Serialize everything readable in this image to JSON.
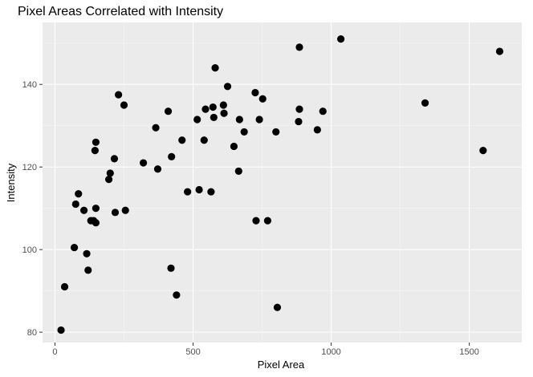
{
  "chart_data": {
    "type": "scatter",
    "title": "Pixel Areas Correlated with Intensity",
    "xlabel": "Pixel Area",
    "ylabel": "Intensity",
    "xlim": [
      -45,
      1690
    ],
    "ylim": [
      77.5,
      155
    ],
    "x_ticks": [
      0,
      500,
      1000,
      1500
    ],
    "x_tick_labels": [
      "0",
      "500",
      "1000",
      "1500"
    ],
    "y_ticks": [
      80,
      100,
      120,
      140
    ],
    "y_tick_labels": [
      "80",
      "100",
      "120",
      "140"
    ],
    "grid": true,
    "background": "#ebebeb",
    "grid_major_color": "#ffffff",
    "point_color": "#000000",
    "points": [
      {
        "x": 22,
        "y": 80.5
      },
      {
        "x": 35,
        "y": 91
      },
      {
        "x": 70,
        "y": 100.5
      },
      {
        "x": 75,
        "y": 111
      },
      {
        "x": 85,
        "y": 113.5
      },
      {
        "x": 105,
        "y": 109.5
      },
      {
        "x": 115,
        "y": 99
      },
      {
        "x": 120,
        "y": 95
      },
      {
        "x": 130,
        "y": 107
      },
      {
        "x": 140,
        "y": 107
      },
      {
        "x": 145,
        "y": 124
      },
      {
        "x": 148,
        "y": 126
      },
      {
        "x": 148,
        "y": 110
      },
      {
        "x": 148,
        "y": 106.5
      },
      {
        "x": 195,
        "y": 117
      },
      {
        "x": 200,
        "y": 118.5
      },
      {
        "x": 215,
        "y": 122
      },
      {
        "x": 218,
        "y": 109
      },
      {
        "x": 230,
        "y": 137.5
      },
      {
        "x": 250,
        "y": 135
      },
      {
        "x": 255,
        "y": 109.5
      },
      {
        "x": 320,
        "y": 121
      },
      {
        "x": 365,
        "y": 129.5
      },
      {
        "x": 372,
        "y": 119.5
      },
      {
        "x": 410,
        "y": 133.5
      },
      {
        "x": 420,
        "y": 95.5
      },
      {
        "x": 422,
        "y": 122.5
      },
      {
        "x": 440,
        "y": 89
      },
      {
        "x": 460,
        "y": 126.5
      },
      {
        "x": 480,
        "y": 114
      },
      {
        "x": 515,
        "y": 131.5
      },
      {
        "x": 522,
        "y": 114.5
      },
      {
        "x": 540,
        "y": 126.5
      },
      {
        "x": 545,
        "y": 134
      },
      {
        "x": 565,
        "y": 114
      },
      {
        "x": 572,
        "y": 134.5
      },
      {
        "x": 575,
        "y": 132
      },
      {
        "x": 580,
        "y": 144
      },
      {
        "x": 610,
        "y": 135
      },
      {
        "x": 612,
        "y": 133
      },
      {
        "x": 625,
        "y": 139.5
      },
      {
        "x": 648,
        "y": 125
      },
      {
        "x": 665,
        "y": 119
      },
      {
        "x": 668,
        "y": 131.5
      },
      {
        "x": 685,
        "y": 128.5
      },
      {
        "x": 725,
        "y": 138
      },
      {
        "x": 728,
        "y": 107
      },
      {
        "x": 740,
        "y": 131.5
      },
      {
        "x": 752,
        "y": 136.5
      },
      {
        "x": 770,
        "y": 107
      },
      {
        "x": 800,
        "y": 128.5
      },
      {
        "x": 805,
        "y": 86
      },
      {
        "x": 882,
        "y": 131
      },
      {
        "x": 885,
        "y": 134
      },
      {
        "x": 885,
        "y": 149
      },
      {
        "x": 950,
        "y": 129
      },
      {
        "x": 970,
        "y": 133.5
      },
      {
        "x": 1035,
        "y": 151
      },
      {
        "x": 1340,
        "y": 135.5
      },
      {
        "x": 1550,
        "y": 124
      },
      {
        "x": 1610,
        "y": 148
      }
    ]
  }
}
